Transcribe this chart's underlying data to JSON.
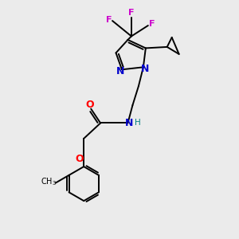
{
  "background_color": "#ebebeb",
  "atom_colors": {
    "N": "#0000cc",
    "O": "#ff0000",
    "F": "#cc00cc",
    "H": "#008080",
    "C": "#000000"
  },
  "figure_size": [
    3.0,
    3.0
  ],
  "dpi": 100
}
